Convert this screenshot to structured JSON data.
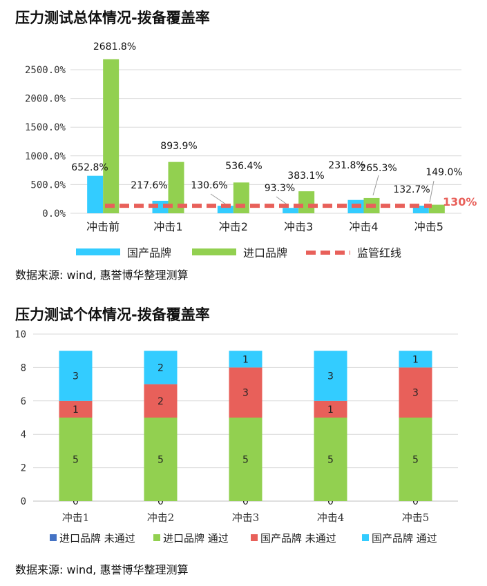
{
  "titles": {
    "chart1": "压力测试总体情况-拨备覆盖率",
    "chart2": "压力测试个体情况-拨备覆盖率"
  },
  "sources": {
    "chart1": "数据来源: wind, 惠誉博华整理测算",
    "chart2": "数据来源: wind, 惠誉博华整理测算"
  },
  "colors": {
    "domestic": "#33ccff",
    "imported": "#92d050",
    "red": "#e8605a",
    "blue": "#4472c4",
    "grid": "#d9d9d9"
  },
  "chart_data": [
    {
      "type": "bar",
      "title": "压力测试总体情况-拨备覆盖率",
      "categories": [
        "冲击前",
        "冲击1",
        "冲击2",
        "冲击3",
        "冲击4",
        "冲击5"
      ],
      "series": [
        {
          "name": "国产品牌",
          "values": [
            652.8,
            217.6,
            130.6,
            93.3,
            231.8,
            132.7
          ],
          "labels": [
            "652.8%",
            "217.6%",
            "130.6%",
            "93.3%",
            "231.8%",
            "132.7%"
          ]
        },
        {
          "name": "进口品牌",
          "values": [
            2681.8,
            893.9,
            536.4,
            383.1,
            265.3,
            149.0
          ],
          "labels": [
            "2681.8%",
            "893.9%",
            "536.4%",
            "383.1%",
            "265.3%",
            "149.0%"
          ]
        },
        {
          "name": "监管红线",
          "values": [
            130,
            130,
            130,
            130,
            130,
            130
          ],
          "style": "dashed-line"
        }
      ],
      "redline_label": "130%",
      "yticks": [
        "0.0%",
        "500.0%",
        "1000.0%",
        "1500.0%",
        "2000.0%",
        "2500.0%"
      ],
      "ylim": [
        0,
        2800
      ],
      "grid": true,
      "legend": "bottom"
    },
    {
      "type": "bar",
      "stacked": true,
      "title": "压力测试个体情况-拨备覆盖率",
      "categories": [
        "冲击1",
        "冲击2",
        "冲击3",
        "冲击4",
        "冲击5"
      ],
      "series": [
        {
          "name": "进口品牌 未通过",
          "values": [
            0,
            0,
            0,
            0,
            0
          ]
        },
        {
          "name": "进口品牌 通过",
          "values": [
            5,
            5,
            5,
            5,
            5
          ]
        },
        {
          "name": "国产品牌 未通过",
          "values": [
            1,
            2,
            3,
            1,
            3
          ]
        },
        {
          "name": "国产品牌 通过",
          "values": [
            3,
            2,
            1,
            3,
            1
          ]
        }
      ],
      "yticks": [
        "0",
        "2",
        "4",
        "6",
        "8",
        "10"
      ],
      "ylim": [
        0,
        10
      ],
      "grid": true,
      "legend": "bottom"
    }
  ]
}
